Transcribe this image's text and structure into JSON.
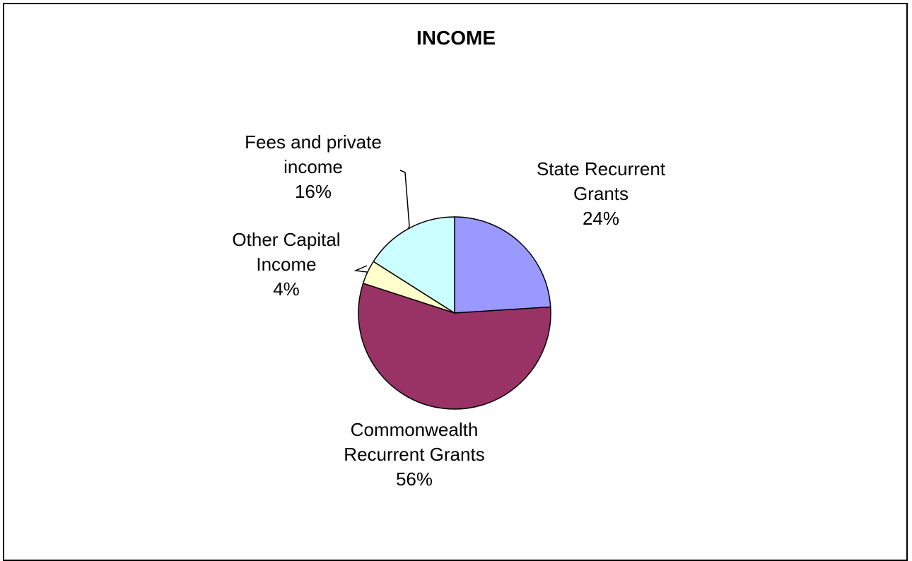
{
  "chart_data": {
    "type": "pie",
    "title": "INCOME",
    "slices": [
      {
        "label_lines": [
          "State Recurrent",
          "Grants"
        ],
        "value": 24,
        "value_label": "24%",
        "color": "#9999FF"
      },
      {
        "label_lines": [
          "Commonwealth",
          "Recurrent Grants"
        ],
        "value": 56,
        "value_label": "56%",
        "color": "#993366"
      },
      {
        "label_lines": [
          "Other Capital",
          "Income"
        ],
        "value": 4,
        "value_label": "4%",
        "color": "#FFFFCC"
      },
      {
        "label_lines": [
          "Fees and private",
          "income"
        ],
        "value": 16,
        "value_label": "16%",
        "color": "#CCFFFF"
      }
    ],
    "legend": "none"
  }
}
